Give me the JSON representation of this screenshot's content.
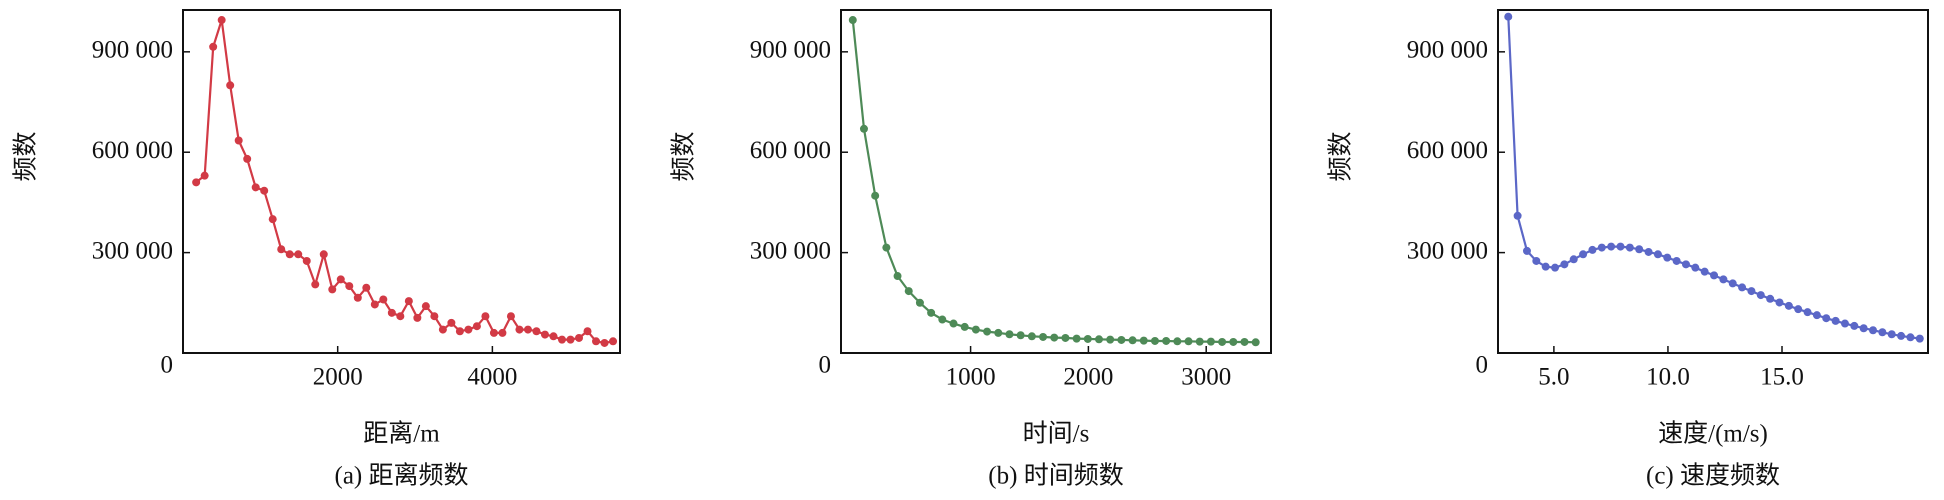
{
  "chart_data": [
    {
      "type": "line",
      "title": "(a) 距离频数",
      "xlabel": "距离/m",
      "ylabel": "频数",
      "color": "#d23a45",
      "x": [
        170,
        280,
        390,
        500,
        610,
        720,
        830,
        940,
        1050,
        1160,
        1270,
        1380,
        1490,
        1600,
        1710,
        1820,
        1930,
        2040,
        2150,
        2260,
        2370,
        2480,
        2590,
        2700,
        2810,
        2920,
        3030,
        3140,
        3250,
        3360,
        3470,
        3580,
        3690,
        3800,
        3910,
        4020,
        4130,
        4240,
        4350,
        4460,
        4570,
        4680,
        4790,
        4900,
        5010,
        5120,
        5230,
        5340,
        5450,
        5560
      ],
      "values": [
        510000,
        530000,
        915000,
        995000,
        800000,
        635000,
        580000,
        495000,
        485000,
        400000,
        310000,
        295000,
        295000,
        275000,
        205000,
        295000,
        190000,
        220000,
        200000,
        165000,
        195000,
        145000,
        160000,
        120000,
        110000,
        155000,
        105000,
        140000,
        110000,
        70000,
        90000,
        65000,
        70000,
        80000,
        110000,
        60000,
        60000,
        110000,
        70000,
        70000,
        65000,
        55000,
        50000,
        40000,
        40000,
        45000,
        65000,
        35000,
        30000,
        35000
      ],
      "xlim": [
        0,
        5650
      ],
      "xticks": [
        2000,
        4000
      ],
      "ylim": [
        0,
        1025000
      ],
      "yticks": [
        0,
        {
          "value": 300000,
          "label": "300 000"
        },
        {
          "value": 600000,
          "label": "600 000"
        },
        {
          "value": 900000,
          "label": "900 000"
        }
      ]
    },
    {
      "type": "line",
      "title": "(b) 时间频数",
      "xlabel": "时间/s",
      "ylabel": "频数",
      "color": "#4e8a57",
      "x": [
        0,
        95,
        190,
        285,
        380,
        475,
        570,
        665,
        760,
        855,
        950,
        1045,
        1140,
        1235,
        1330,
        1425,
        1520,
        1615,
        1710,
        1805,
        1900,
        1995,
        2090,
        2185,
        2280,
        2375,
        2470,
        2565,
        2660,
        2755,
        2850,
        2945,
        3040,
        3135,
        3230,
        3325,
        3420
      ],
      "values": [
        995000,
        670000,
        470000,
        315000,
        230000,
        185000,
        150000,
        120000,
        100000,
        88000,
        78000,
        70000,
        64000,
        60000,
        56000,
        53000,
        50000,
        48000,
        46000,
        45000,
        43000,
        42000,
        41000,
        40000,
        39000,
        38000,
        37000,
        36000,
        36000,
        35000,
        35000,
        34000,
        34000,
        33000,
        33000,
        33000,
        32000
      ],
      "xlim": [
        -100,
        3550
      ],
      "xticks": [
        1000,
        2000,
        3000
      ],
      "ylim": [
        0,
        1025000
      ],
      "yticks": [
        0,
        {
          "value": 300000,
          "label": "300 000"
        },
        {
          "value": 600000,
          "label": "600 000"
        },
        {
          "value": 900000,
          "label": "900 000"
        }
      ]
    },
    {
      "type": "line",
      "title": "(c) 速度频数",
      "xlabel": "速度/(m/s)",
      "ylabel": "频数",
      "color": "#5b67c7",
      "x": [
        3.0,
        3.41,
        3.82,
        4.23,
        4.64,
        5.05,
        5.46,
        5.87,
        6.28,
        6.69,
        7.1,
        7.51,
        7.92,
        8.33,
        8.74,
        9.15,
        9.56,
        9.97,
        10.38,
        10.79,
        11.2,
        11.61,
        12.02,
        12.43,
        12.84,
        13.25,
        13.66,
        14.07,
        14.48,
        14.89,
        15.3,
        15.71,
        16.12,
        16.53,
        16.94,
        17.35,
        17.76,
        18.17,
        18.58,
        18.99,
        19.4,
        19.81,
        20.22,
        20.63,
        21.04
      ],
      "values": [
        1005000,
        410000,
        305000,
        275000,
        258000,
        255000,
        265000,
        280000,
        295000,
        308000,
        315000,
        318000,
        318000,
        315000,
        310000,
        302000,
        295000,
        285000,
        275000,
        265000,
        255000,
        243000,
        232000,
        220000,
        208000,
        196000,
        185000,
        173000,
        162000,
        151000,
        141000,
        131000,
        122000,
        113000,
        104000,
        96000,
        88000,
        81000,
        74000,
        68000,
        62000,
        56000,
        51000,
        47000,
        43000
      ],
      "xlim": [
        2.55,
        21.4
      ],
      "xticks": [
        {
          "value": 5,
          "label": "5.0"
        },
        {
          "value": 10,
          "label": "10.0"
        },
        {
          "value": 15,
          "label": "15.0"
        }
      ],
      "ylim": [
        0,
        1025000
      ],
      "yticks": [
        0,
        {
          "value": 300000,
          "label": "300 000"
        },
        {
          "value": 600000,
          "label": "600 000"
        },
        {
          "value": 900000,
          "label": "900 000"
        }
      ]
    }
  ]
}
